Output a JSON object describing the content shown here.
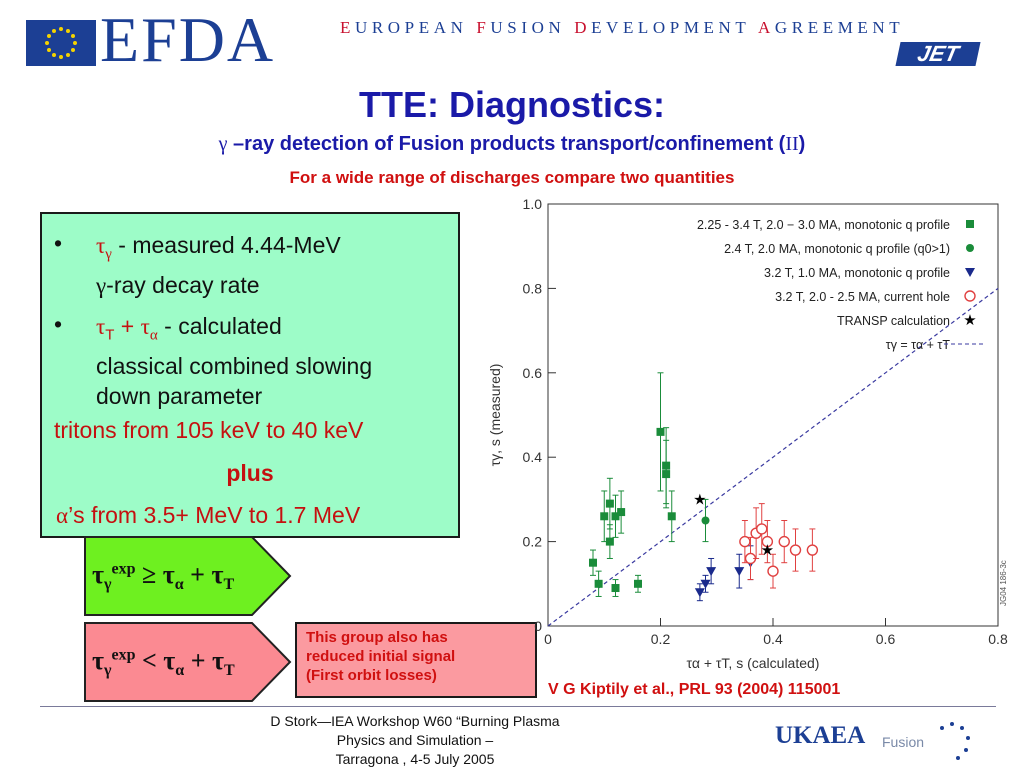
{
  "header": {
    "logo_text": "EFDA",
    "tagline": [
      {
        "initial": "E",
        "rest": "UROPEAN "
      },
      {
        "initial": "F",
        "rest": "USION "
      },
      {
        "initial": "D",
        "rest": "EVELOPMENT "
      },
      {
        "initial": "A",
        "rest": "GREEMENT"
      }
    ],
    "jet_logo": "JET",
    "colors": {
      "brand_blue": "#1c3f94",
      "accent_red": "#c8102e"
    }
  },
  "title": "TTE: Diagnostics:",
  "subtitle": {
    "gamma": "γ",
    "text": " –ray detection of Fusion products transport/confinement (",
    "roman": "II",
    "close": ")"
  },
  "subtitle2": "For a wide range of discharges compare two quantities",
  "info_box": {
    "bullet_symbol": "•",
    "item1": {
      "symbol": "τ",
      "sub": "γ",
      "text": "  - measured 4.44-MeV",
      "line2_symbol": "γ",
      "line2": "-ray decay rate"
    },
    "item2": {
      "symbol1": "τ",
      "sub1": "T",
      "plus": " + ",
      "symbol2": "τ",
      "sub2": "α",
      "text": " - calculated",
      "line2": "classical combined slowing",
      "line3": "down parameter"
    },
    "tritons": "tritons from 105 keV to 40 keV",
    "plus": "plus",
    "alphas_symbol": "α",
    "alphas": "’s  from 3.5+ MeV to 1.7 MeV",
    "color": "#9dfcc8"
  },
  "arrow_green": {
    "tau": "τ",
    "sub": "γ",
    "sup": "exp",
    "rel": " ≥ ",
    "tau2": "τ",
    "sub2": "α",
    "plus": " + ",
    "tau3": "τ",
    "sub3": "T",
    "color": "#6ef020"
  },
  "arrow_pink": {
    "tau": "τ",
    "sub": "γ",
    "sup": "exp",
    "rel": " < ",
    "tau2": "τ",
    "sub2": "α",
    "plus": " + ",
    "tau3": "τ",
    "sub3": "T",
    "color": "#fb8a92"
  },
  "note": {
    "lines": [
      "This group also has",
      "reduced initial signal",
      "(First orbit losses)"
    ]
  },
  "citation": "V G Kiptily et al., PRL 93 (2004) 115001",
  "footer": {
    "line1": "D Stork—IEA Workshop W60 “Burning Plasma Physics and Simulation –",
    "line2": "Tarragona , 4-5 July 2005"
  },
  "ukaea": {
    "name": "UKAEA",
    "fusion": "Fusion"
  },
  "chart_data": {
    "type": "scatter",
    "xlabel": "τα + τT, s (calculated)",
    "ylabel": "τγ, s (measured)",
    "xlim": [
      0,
      0.8
    ],
    "ylim": [
      0,
      1.0
    ],
    "xticks": [
      "0",
      "0.2",
      "0.4",
      "0.6",
      "0.8"
    ],
    "yticks": [
      "0",
      "0.2",
      "0.4",
      "0.6",
      "0.8",
      "1.0"
    ],
    "stamp": "JG04 186-3c",
    "legend_position": "top-right",
    "series": [
      {
        "name": "2.25 - 3.4 T, 2.0 − 3.0 MA, monotonic q profile",
        "marker": "square",
        "color": "#1a8c3a",
        "points": [
          [
            0.08,
            0.15,
            0.03
          ],
          [
            0.09,
            0.1,
            0.03
          ],
          [
            0.1,
            0.26,
            0.06
          ],
          [
            0.11,
            0.29,
            0.06
          ],
          [
            0.12,
            0.26,
            0.05
          ],
          [
            0.13,
            0.27,
            0.05
          ],
          [
            0.12,
            0.09,
            0.02
          ],
          [
            0.11,
            0.2,
            0.04
          ],
          [
            0.16,
            0.1,
            0.02
          ],
          [
            0.2,
            0.46,
            0.14
          ],
          [
            0.21,
            0.38,
            0.09
          ],
          [
            0.21,
            0.36,
            0.08
          ],
          [
            0.22,
            0.26,
            0.06
          ]
        ]
      },
      {
        "name": "2.4 T, 2.0 MA, monotonic q profile (q0>1)",
        "marker": "circle",
        "color": "#1a8c3a",
        "points": [
          [
            0.28,
            0.25,
            0.05
          ]
        ]
      },
      {
        "name": "3.2 T, 1.0 MA, monotonic q profile",
        "marker": "triangle",
        "color": "#1a2a8c",
        "points": [
          [
            0.27,
            0.08,
            0.02
          ],
          [
            0.28,
            0.1,
            0.02
          ],
          [
            0.29,
            0.13,
            0.03
          ],
          [
            0.34,
            0.13,
            0.04
          ],
          [
            0.36,
            0.15,
            0.04
          ]
        ]
      },
      {
        "name": "3.2 T, 2.0 - 2.5 MA, current hole",
        "marker": "open-circle",
        "color": "#e04040",
        "points": [
          [
            0.35,
            0.2,
            0.05
          ],
          [
            0.36,
            0.16,
            0.05
          ],
          [
            0.37,
            0.22,
            0.06
          ],
          [
            0.38,
            0.23,
            0.06
          ],
          [
            0.39,
            0.2,
            0.05
          ],
          [
            0.4,
            0.13,
            0.04
          ],
          [
            0.42,
            0.2,
            0.05
          ],
          [
            0.44,
            0.18,
            0.05
          ],
          [
            0.47,
            0.18,
            0.05
          ]
        ]
      },
      {
        "name": "TRANSP calculation",
        "marker": "star",
        "color": "#000000",
        "points": [
          [
            0.27,
            0.3,
            0
          ],
          [
            0.39,
            0.18,
            0
          ]
        ]
      },
      {
        "name": "τγ = τα + τT",
        "marker": "line",
        "color": "#3a3aa0",
        "points": []
      }
    ]
  }
}
